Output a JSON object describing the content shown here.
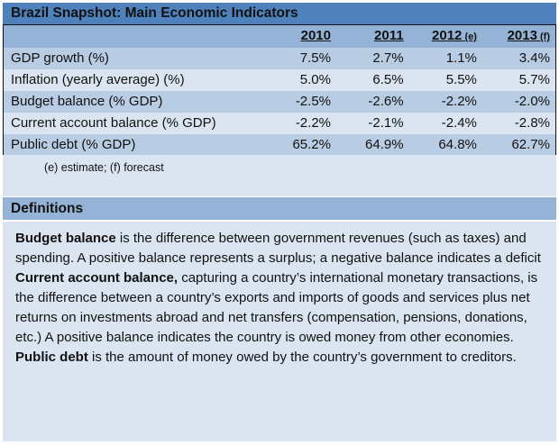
{
  "title": "Brazil Snapshot: Main Economic Indicators",
  "table": {
    "columns": [
      {
        "year": "2010",
        "suffix": ""
      },
      {
        "year": "2011",
        "suffix": ""
      },
      {
        "year": "2012",
        "suffix": " (e)"
      },
      {
        "year": "2013",
        "suffix": " (f)"
      }
    ],
    "rows": [
      {
        "label": "GDP growth (%)",
        "values": [
          "7.5%",
          "2.7%",
          "1.1%",
          "3.4%"
        ]
      },
      {
        "label": "Inflation (yearly average) (%)",
        "values": [
          "5.0%",
          "6.5%",
          "5.5%",
          "5.7%"
        ]
      },
      {
        "label": "Budget balance (% GDP)",
        "values": [
          "-2.5%",
          "-2.6%",
          "-2.2%",
          "-2.0%"
        ]
      },
      {
        "label": "Current account balance (% GDP)",
        "values": [
          "-2.2%",
          "-2.1%",
          "-2.4%",
          "-2.8%"
        ]
      },
      {
        "label": "Public debt (% GDP)",
        "values": [
          "65.2%",
          "64.9%",
          "64.8%",
          "62.7%"
        ]
      }
    ],
    "footnote": "(e) estimate; (f) forecast"
  },
  "definitions": {
    "heading": "Definitions",
    "items": [
      {
        "term": "Budget balance",
        "text": " is the difference between government revenues (such as taxes) and spending. A positive balance represents a surplus; a negative balance indicates a deficit"
      },
      {
        "term": "Current account balance,",
        "text": " capturing a country’s international monetary transactions, is the difference between a country’s exports and imports of goods and services plus net returns on investments abroad and net transfers (compensation, pensions, donations, etc.) A positive balance indicates the country is owed money from other economies."
      },
      {
        "term": "Public debt",
        "text": " is the amount of money owed by the country’s government to creditors."
      }
    ]
  },
  "colors": {
    "title_bar": "#4f81bd",
    "header_row": "#95b3d7",
    "row_dark": "#b8cce4",
    "row_light": "#dbe5f1"
  }
}
